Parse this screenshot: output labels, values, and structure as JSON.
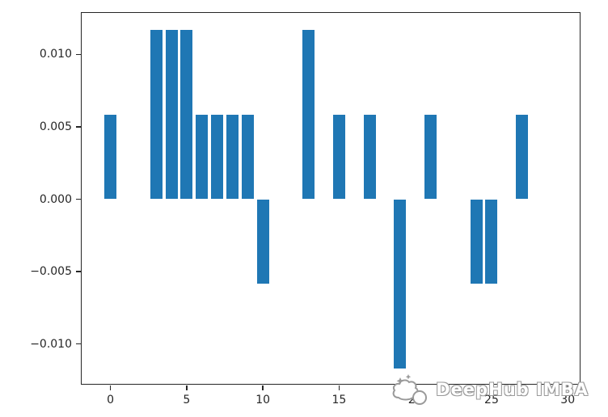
{
  "figure": {
    "background": "#ffffff"
  },
  "chart_data": {
    "type": "bar",
    "title": "",
    "xlabel": "",
    "ylabel": "",
    "x": [
      0,
      1,
      2,
      3,
      4,
      5,
      6,
      7,
      8,
      9,
      10,
      11,
      12,
      13,
      14,
      15,
      16,
      17,
      18,
      19,
      20,
      21,
      22,
      23,
      24,
      25,
      26,
      27,
      28,
      29
    ],
    "values": [
      0.00585,
      0,
      0,
      0.0117,
      0.0117,
      0.0117,
      0.00585,
      0.00585,
      0.00585,
      0.00585,
      -0.00585,
      0,
      0,
      0.0117,
      0,
      0.00585,
      0,
      0.00585,
      0,
      -0.0117,
      0,
      0.00585,
      0,
      0,
      -0.00585,
      -0.00585,
      0,
      0.00585,
      0,
      0
    ],
    "bar_color": "#1f77b4",
    "bar_width": 0.8,
    "xlim": [
      -1.89,
      30.89
    ],
    "ylim": [
      -0.01287,
      0.01287
    ],
    "xticks": {
      "values": [
        0,
        5,
        10,
        15,
        20,
        25,
        30
      ],
      "labels": [
        "0",
        "5",
        "10",
        "15",
        "20",
        "25",
        "30"
      ]
    },
    "yticks": {
      "values": [
        0.01,
        0.005,
        0.0,
        -0.005,
        -0.01
      ],
      "labels": [
        "0.010",
        "0.005",
        "0.000",
        "−0.005",
        "−0.010"
      ]
    },
    "grid": false,
    "legend": null,
    "axis_color": "#262626"
  },
  "watermark": {
    "logo_icon": "cloud-stars-logo-icon",
    "text": "DeepHub IMBA",
    "color": "#9a9a9a"
  }
}
